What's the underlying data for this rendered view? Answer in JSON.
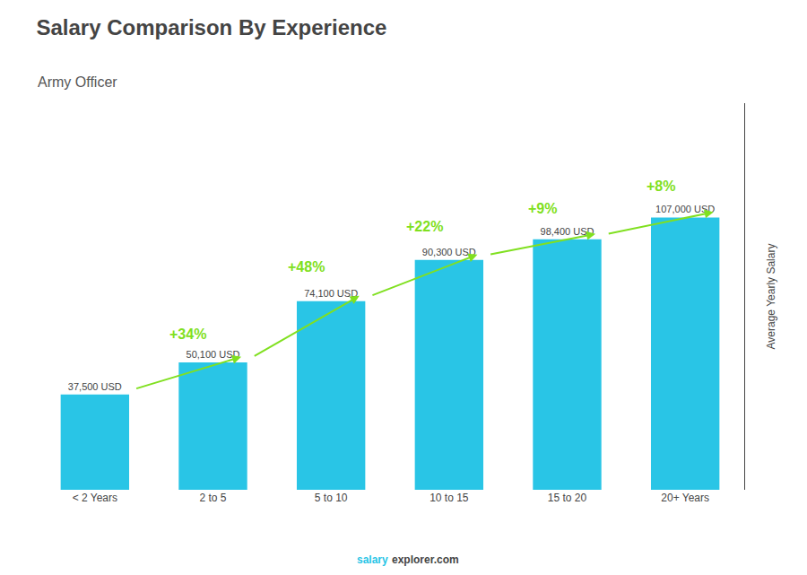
{
  "chart_data": {
    "type": "bar",
    "title": "Salary Comparison By Experience",
    "subtitle": "Army Officer",
    "y_label": "Average Yearly Salary",
    "footer": [
      {
        "text": "salary",
        "color": "#29C5E6"
      },
      {
        "text": "explorer.com"
      }
    ],
    "categories": [
      "< 2 Years",
      "2 to 5",
      "5 to 10",
      "10 to 15",
      "15 to 20",
      "20+ Years"
    ],
    "values": [
      37500,
      50100,
      74100,
      90300,
      98400,
      107000
    ],
    "value_labels": [
      "37,500 USD",
      "50,100 USD",
      "74,100 USD",
      "90,300 USD",
      "98,400 USD",
      "107,000 USD"
    ],
    "data_labels": true,
    "annotations": [
      {
        "text": "+34%",
        "color": "#80E020"
      },
      {
        "text": "+48%",
        "color": "#80E020"
      },
      {
        "text": "+22%",
        "color": "#80E020"
      },
      {
        "text": "+9%",
        "color": "#80E020"
      },
      {
        "text": "+8%",
        "color": "#80E020"
      }
    ],
    "color": "#29C5E6",
    "ylim": [
      0,
      151940
    ],
    "tick_labels": "x",
    "grid": false
  }
}
